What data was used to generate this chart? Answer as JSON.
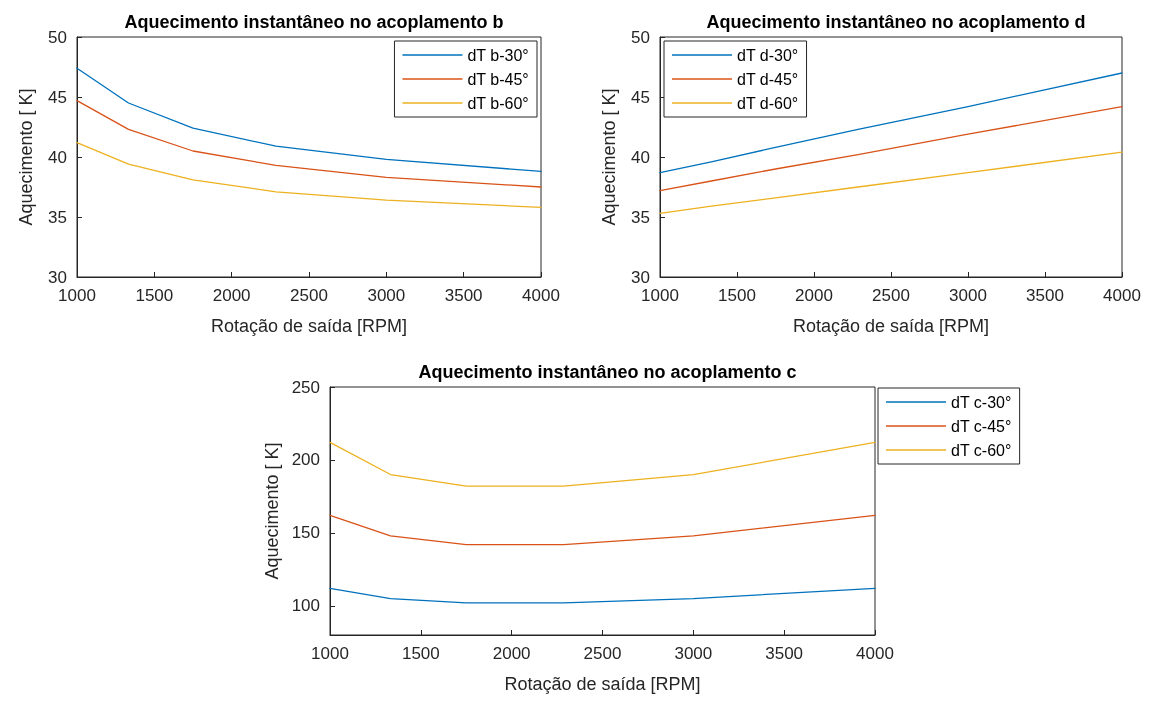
{
  "chart_data": [
    {
      "type": "line",
      "title": "Aquecimento instantâneo no acoplamento b",
      "xlabel": "Rotação de saída [RPM]",
      "ylabel": "Aquecimento [ K]",
      "x": [
        1000,
        1333,
        1750,
        2286,
        3000,
        4000
      ],
      "xlim": [
        1000,
        4000
      ],
      "xticks": [
        1000,
        1500,
        2000,
        2500,
        3000,
        3500,
        4000
      ],
      "ylim": [
        30,
        50
      ],
      "yticks": [
        30,
        35,
        40,
        45,
        50
      ],
      "grid": false,
      "legend": "top right",
      "marker": "none",
      "line_style": "solid",
      "series": [
        {
          "name": "dT b-30°",
          "color": "#0072bd",
          "values": [
            47.4,
            44.5,
            42.4,
            40.9,
            39.8,
            38.8
          ]
        },
        {
          "name": "dT b-45°",
          "color": "#d95319",
          "values": [
            44.7,
            42.3,
            40.5,
            39.3,
            38.3,
            37.5
          ]
        },
        {
          "name": "dT b-60°",
          "color": "#edb120",
          "values": [
            41.2,
            39.4,
            38.1,
            37.1,
            36.4,
            35.8
          ]
        }
      ]
    },
    {
      "type": "line",
      "title": "Aquecimento instantâneo no acoplamento d",
      "xlabel": "Rotação de saída [RPM]",
      "ylabel": "Aquecimento [ K]",
      "x": [
        1000,
        1333,
        1750,
        2286,
        3000,
        4000
      ],
      "xlim": [
        1000,
        4000
      ],
      "xticks": [
        1000,
        1500,
        2000,
        2500,
        3000,
        3500,
        4000
      ],
      "ylim": [
        30,
        50
      ],
      "yticks": [
        30,
        35,
        40,
        45,
        50
      ],
      "grid": false,
      "legend": "top left",
      "marker": "none",
      "line_style": "solid",
      "series": [
        {
          "name": "dT d-30°",
          "color": "#0072bd",
          "values": [
            38.7,
            39.6,
            40.8,
            42.3,
            44.2,
            47.0
          ]
        },
        {
          "name": "dT d-45°",
          "color": "#d95319",
          "values": [
            37.2,
            38.0,
            39.0,
            40.2,
            41.9,
            44.2
          ]
        },
        {
          "name": "dT d-60°",
          "color": "#edb120",
          "values": [
            35.3,
            35.9,
            36.6,
            37.5,
            38.7,
            40.4
          ]
        }
      ]
    },
    {
      "type": "line",
      "title": "Aquecimento instantâneo no acoplamento c",
      "xlabel": "Rotação de saída [RPM]",
      "ylabel": "Aquecimento [ K]",
      "x": [
        1000,
        1333,
        1750,
        2286,
        3000,
        4000
      ],
      "xlim": [
        1000,
        4000
      ],
      "xticks": [
        1000,
        1500,
        2000,
        2500,
        3000,
        3500,
        4000
      ],
      "ylim": [
        80,
        250
      ],
      "yticks": [
        100,
        150,
        200,
        250
      ],
      "grid": false,
      "legend": "right",
      "marker": "none",
      "line_style": "solid",
      "series": [
        {
          "name": "dT c-30°",
          "color": "#0072bd",
          "values": [
            112,
            105,
            102,
            102,
            105,
            112
          ]
        },
        {
          "name": "dT c-45°",
          "color": "#d95319",
          "values": [
            162,
            148,
            142,
            142,
            148,
            162
          ]
        },
        {
          "name": "dT c-60°",
          "color": "#edb120",
          "values": [
            212,
            190,
            182,
            182,
            190,
            212
          ]
        }
      ]
    }
  ]
}
